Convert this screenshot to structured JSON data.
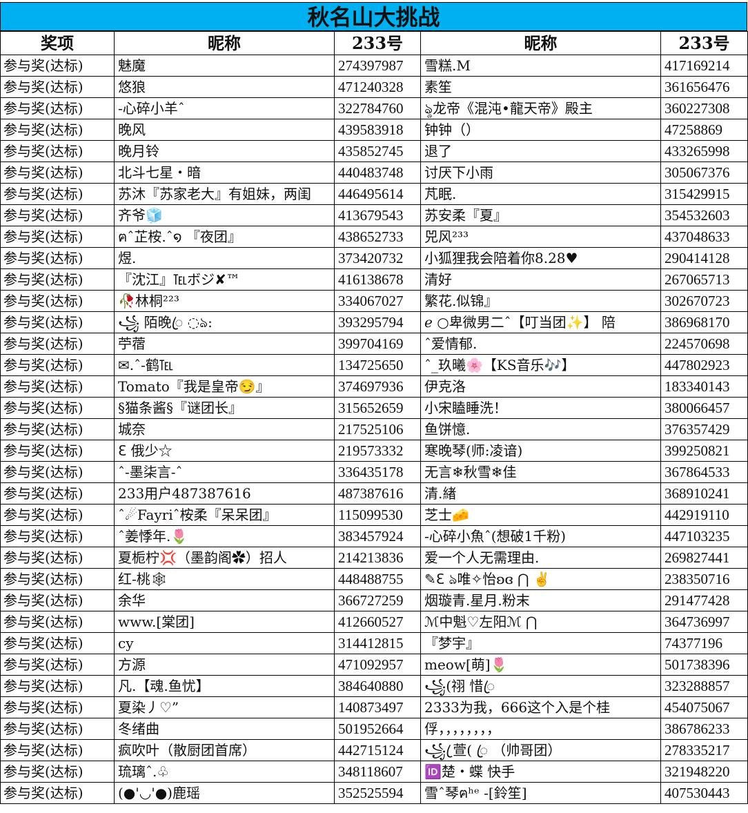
{
  "title": "秋名山大挑战",
  "headers": [
    "奖项",
    "昵称",
    "233号",
    "昵称",
    "233号"
  ],
  "rows": [
    [
      "参与奖(达标)",
      "魅魔",
      "274397987",
      "雪糕.M",
      "417169214"
    ],
    [
      "参与奖(达标)",
      "悠狼",
      "471240328",
      "素笙",
      "361656476"
    ],
    [
      "参与奖(达标)",
      "-心碎小羊ˆ",
      "322784760",
      "ৡ龙帝《混沌•龍天帝》殿主",
      "360227308"
    ],
    [
      "参与奖(达标)",
      "晚风",
      "439583918",
      "钟钟（）",
      "47258869"
    ],
    [
      "参与奖(达标)",
      "晚月铃",
      "435852745",
      "退了",
      "433265998"
    ],
    [
      "参与奖(达标)",
      "北斗七星・暗",
      "440483748",
      "讨厌下小雨",
      "305067376"
    ],
    [
      "参与奖(达标)",
      "苏沐『苏家老大』有姐妹，两闺",
      "446495614",
      "芃眠.",
      "315429915"
    ],
    [
      "参与奖(达标)",
      "齐爷🧊",
      "413679543",
      "苏安柔『夏』",
      "354532603"
    ],
    [
      "参与奖(达标)",
      "ฅˆ芷桉.ˆ໑ 『夜团』",
      "438652733",
      "兕风²³³",
      "437048633"
    ],
    [
      "参与奖(达标)",
      "煜.",
      "373420732",
      "小狐狸我会陪着你8.28♥",
      "290414128"
    ],
    [
      "参与奖(达标)",
      "『沈江』℡ボジ✘™",
      "416138678",
      "清好",
      "267065713"
    ],
    [
      "参与奖(达标)",
      "🥀林桐²²³",
      "334067027",
      "繁花.似锦』",
      "302670723"
    ],
    [
      "参与奖(达标)",
      "꧁ 陌晚ꦿ ◌ঌ:",
      "393295794",
      "ℯ ○卑微男二ˆ【叮当团✨】 陪",
      "386968170"
    ],
    [
      "参与奖(达标)",
      "苧蓿",
      "399704169",
      "ˆ爱情郁.",
      "224570698"
    ],
    [
      "参与奖(达标)",
      "✉.ˆ-鹤℡",
      "134725650",
      "ˆ_玖曦🌸【KS音乐🎶】",
      "447802923"
    ],
    [
      "参与奖(达标)",
      "Tomato『我是皇帝😏』",
      "374697936",
      "伊克洛",
      "183340143"
    ],
    [
      "参与奖(达标)",
      "§猫条酱§『谜团长』",
      "315652659",
      "小宋瞌睡洗！",
      "380066457"
    ],
    [
      "参与奖(达标)",
      "城奈",
      "217525106",
      "鱼饼憶.",
      "376357429"
    ],
    [
      "参与奖(达标)",
      "ℇ 俄少☆",
      "219573332",
      "寒晚琴(师:凌谙)",
      "399250821"
    ],
    [
      "参与奖(达标)",
      "ˆ-墨柒言-ˆ",
      "336435178",
      "无言❄秋雪❄佳",
      "367864533"
    ],
    [
      "参与奖(达标)",
      "233用户487387616",
      "487387616",
      "清.緖",
      "368910241"
    ],
    [
      "参与奖(达标)",
      "ˆ☄Fayriˆ桉柔『呆呆团』",
      "115099530",
      "芝士🧀",
      "442919110"
    ],
    [
      "参与奖(达标)",
      "ˆ姜悸年.🌷",
      "383457924",
      "-心碎小魚ˆ(想破1千粉)",
      "447103235"
    ],
    [
      "参与奖(达标)",
      "夏栀柠💢（墨韵阁✿）招人",
      "214213836",
      "爱一个人无需理由.",
      "269827441"
    ],
    [
      "参与奖(达标)",
      "红-桃🕸",
      "448488755",
      "✎ℇ ঌ唯✧怡ʚɞ ⋂    ✌",
      "238350716"
    ],
    [
      "参与奖(达标)",
      "余华",
      "366727259",
      "烟璇青.星月.粉末",
      "291477428"
    ],
    [
      "参与奖(达标)",
      "www.[棠团]",
      "412660527",
      "ℳ中魁♡左阳ℳ ⋂",
      "364736997"
    ],
    [
      "参与奖(达标)",
      "cy",
      "314412815",
      "『梦宇』",
      "74377196"
    ],
    [
      "参与奖(达标)",
      "方源",
      "471092957",
      "meow[萌]🌷",
      "501738396"
    ],
    [
      "参与奖(达标)",
      "凡.【魂.鱼忧】",
      "384640880",
      "꧁(祤  惜ꦿ",
      "323288857"
    ],
    [
      "参与奖(达标)",
      "夏染丿♡”",
      "140873497",
      "2333为我，666这个入是个桂",
      "454075067"
    ],
    [
      "参与奖(达标)",
      "冬绪曲",
      "501952664",
      "俘，，，，，，，，",
      "386786233"
    ],
    [
      "参与奖(达标)",
      "疯吹叶（散厨团首席）",
      "442715124",
      "꧁ ꦿ萱( ꦿ  （帅哥团）",
      "278335217"
    ],
    [
      "参与奖(达标)",
      "琉璃ˆ.♧",
      "348118607",
      "🆔楚・蝶 快手",
      "321948220"
    ],
    [
      "参与奖(达标)",
      "(●'◡'●)鹿瑶",
      "352525594",
      "雪ˆ琴ฅʰᵉ -[鈴笙]",
      "407530443"
    ]
  ],
  "colors": {
    "title_bg": "#00B0F0",
    "grid": "#000000"
  }
}
